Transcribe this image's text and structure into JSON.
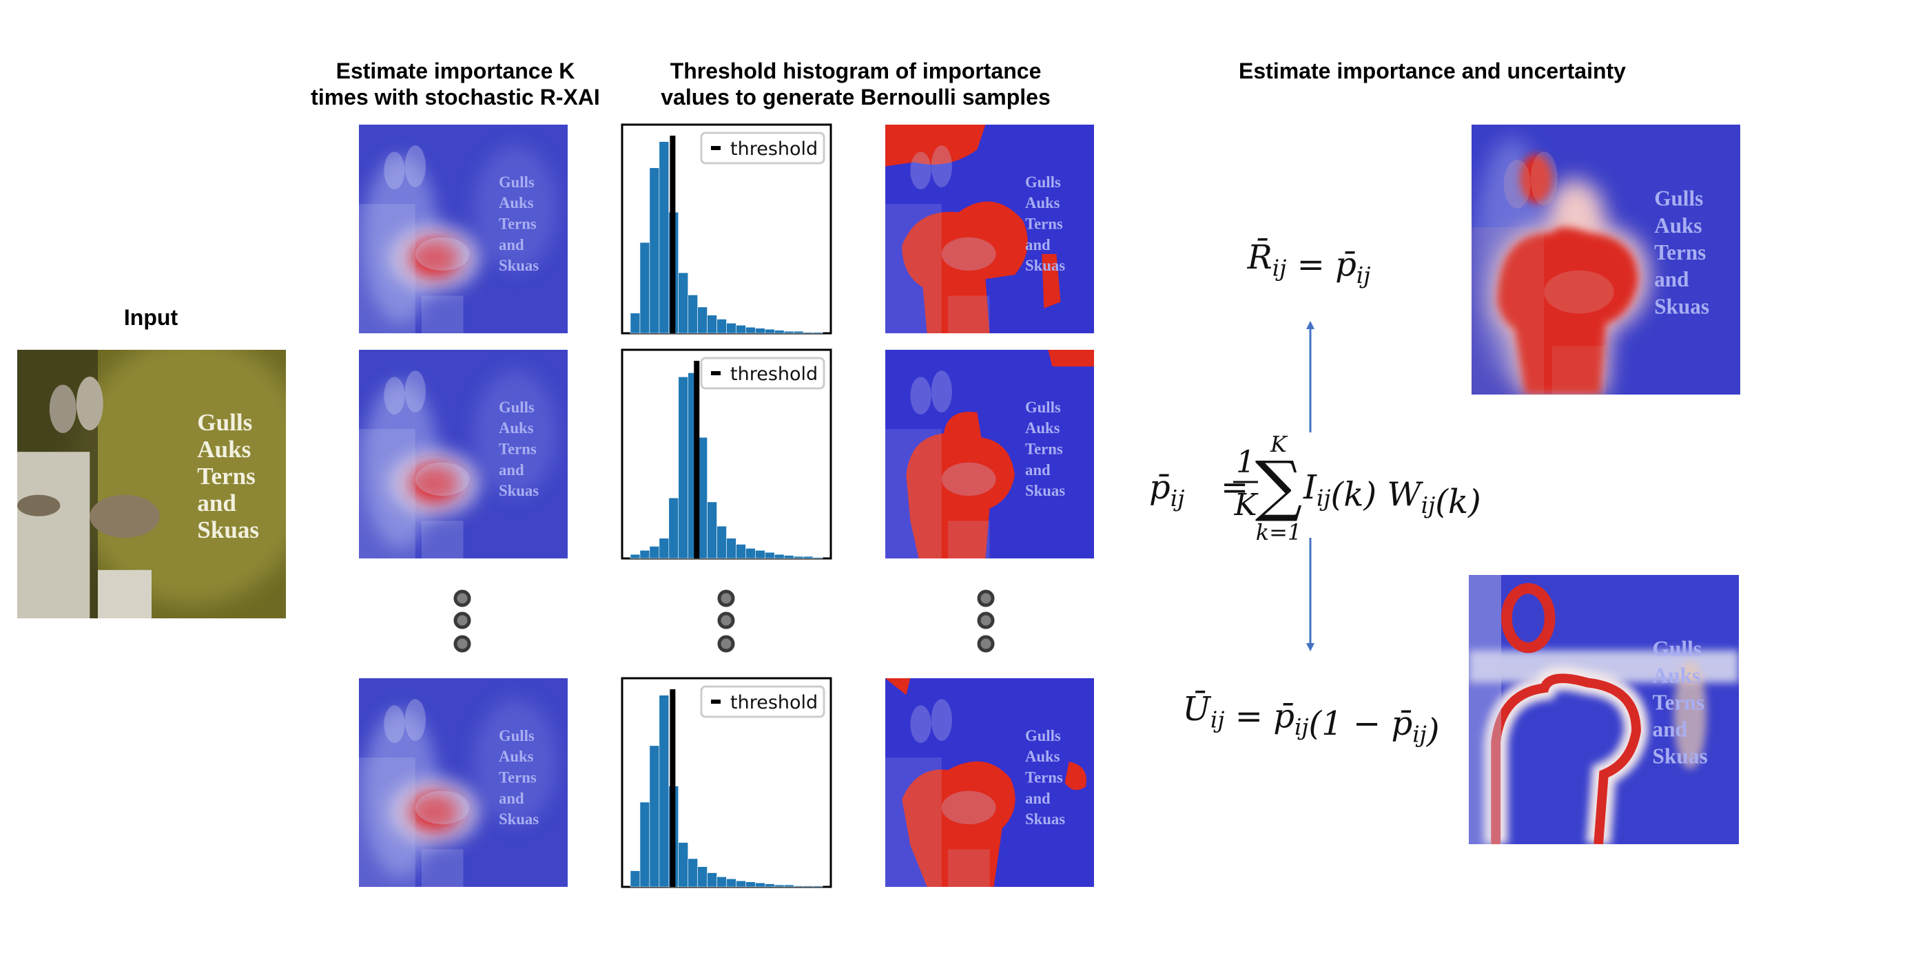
{
  "input": {
    "title": "Input",
    "sign_text": [
      "Gulls",
      "Auks",
      "Terns",
      "and",
      "Skuas"
    ]
  },
  "columns": {
    "importance": {
      "title": [
        "Estimate importance K",
        "times with stochastic R-XAI"
      ]
    },
    "histogram": {
      "title": [
        "Threshold histogram of importance",
        "values to generate Bernoulli samples"
      ]
    }
  },
  "histograms": [
    {
      "type": "bar",
      "values": [
        10,
        45,
        82,
        95,
        60,
        30,
        19,
        13,
        9,
        7,
        5,
        4,
        3,
        2.5,
        2,
        1.5,
        1,
        1,
        0.5,
        0.5
      ],
      "xlim": [
        0,
        20
      ],
      "ylim": [
        0,
        100
      ],
      "threshold": 4.4,
      "threshold_label": "threshold",
      "color": "#1f77b4"
    },
    {
      "type": "bar",
      "values": [
        2,
        4,
        6,
        10,
        30,
        90,
        92,
        60,
        28,
        16,
        10,
        7,
        5,
        4,
        3,
        2,
        1.5,
        1,
        1,
        0.5
      ],
      "xlim": [
        0,
        20
      ],
      "ylim": [
        0,
        100
      ],
      "threshold": 6.9,
      "threshold_label": "threshold",
      "color": "#1f77b4"
    },
    {
      "type": "bar",
      "values": [
        8,
        42,
        70,
        95,
        50,
        22,
        14,
        10,
        7,
        5,
        4,
        3,
        2.5,
        2,
        1.5,
        1,
        1,
        0.5,
        0.5,
        0.5
      ],
      "xlim": [
        0,
        20
      ],
      "ylim": [
        0,
        100
      ],
      "threshold": 4.4,
      "threshold_label": "threshold",
      "color": "#1f77b4"
    }
  ],
  "result": {
    "title": "Estimate importance and uncertainty",
    "reliability": [
      [
        "R̄",
        "ij"
      ],
      [
        " = p̄",
        "ij"
      ]
    ],
    "mean": {
      "lhs": [
        "p̄",
        "ij"
      ],
      "eq": "=",
      "frac": [
        "1",
        "K"
      ],
      "sum": {
        "symbol": "∑",
        "upper": "K",
        "lower": "k=1"
      },
      "terms": [
        [
          "I",
          "ij"
        ],
        [
          "(k) W",
          "ij"
        ],
        [
          "(k)"
        ]
      ]
    },
    "uncertainty": [
      [
        "Ū",
        "ij"
      ],
      [
        " = p̄",
        "ij"
      ],
      [
        "(1 − p̄",
        "ij"
      ],
      [
        ")"
      ]
    ]
  }
}
